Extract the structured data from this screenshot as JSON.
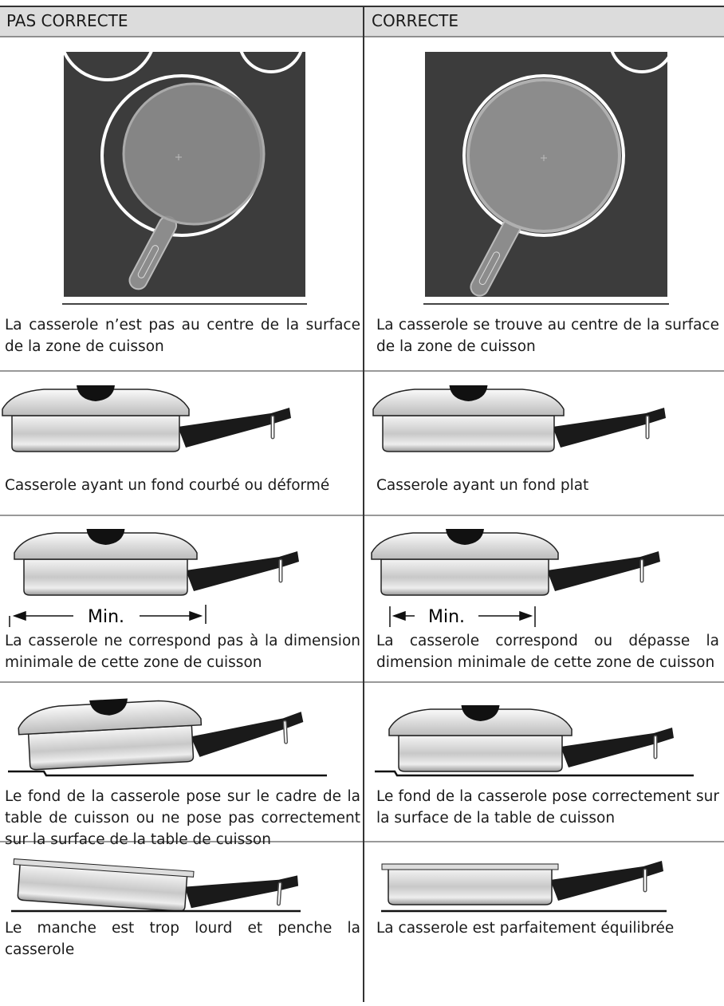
{
  "header": {
    "columns": [
      "PAS CORRECTE",
      "CORRECTE"
    ]
  },
  "rows": [
    {
      "incorrect": {
        "caption": "La casserole n’est pas au centre de la surface de la zone de cuisson"
      },
      "correct": {
        "caption": "La casserole se trouve au centre de la surface de la zone de cuisson"
      }
    },
    {
      "incorrect": {
        "caption": "Casserole ayant un fond courbé ou déformé"
      },
      "correct": {
        "caption": "Casserole ayant un fond plat"
      }
    },
    {
      "incorrect": {
        "label": "Min.",
        "caption": "La casserole ne correspond pas à la dimension minimale de cette zone de cuisson"
      },
      "correct": {
        "label": "Min.",
        "caption": "La casserole correspond ou dépasse la dimension minimale de cette zone de cuisson"
      }
    },
    {
      "incorrect": {
        "caption": "Le fond de la casserole pose sur le cadre de la table de cuisson ou ne pose pas correctement sur la surface de la table de cuisson"
      },
      "correct": {
        "caption": "Le fond de la casserole pose correctement sur la surface de la table de cuisson"
      }
    },
    {
      "incorrect": {
        "caption": "Le manche est trop lourd et penche la casserole"
      },
      "correct": {
        "caption": "La casserole est parfaitement équilibrée"
      }
    }
  ]
}
